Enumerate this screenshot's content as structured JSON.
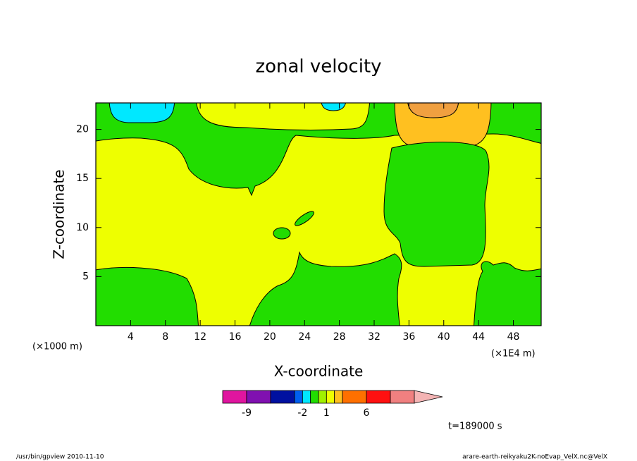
{
  "chart_data": {
    "type": "contour",
    "title": "zonal velocity",
    "x_label": "X-coordinate",
    "y_label": "Z-coordinate",
    "x_unit": "(×1E4 m)",
    "y_unit": "(×1000 m)",
    "xlim": [
      0,
      51.2
    ],
    "ylim": [
      0,
      22.7
    ],
    "xticks": [
      4,
      8,
      12,
      16,
      20,
      24,
      28,
      32,
      36,
      40,
      44,
      48
    ],
    "yticks": [
      5,
      10,
      15,
      20
    ],
    "colorbar": {
      "levels": [
        -12,
        -9,
        -6,
        -3,
        -2,
        -1,
        0,
        1,
        2,
        3,
        6,
        9,
        12
      ],
      "colors": [
        "#e0159f",
        "#8010b0",
        "#0010a0",
        "#0060f0",
        "#00e8ff",
        "#22dd00",
        "#a0f000",
        "#eeff00",
        "#ffc020",
        "#ff7000",
        "#ff1010",
        "#f08080"
      ],
      "extend_color": "#f4b4b4",
      "ticks": [
        -9,
        -2,
        1,
        6
      ]
    },
    "annotation": "t=189000 s",
    "footer_left": "/usr/bin/gpview  2010-11-10",
    "footer_right": "arare-earth-reikyaku2K-noEvap_VelX.nc@VelX"
  }
}
